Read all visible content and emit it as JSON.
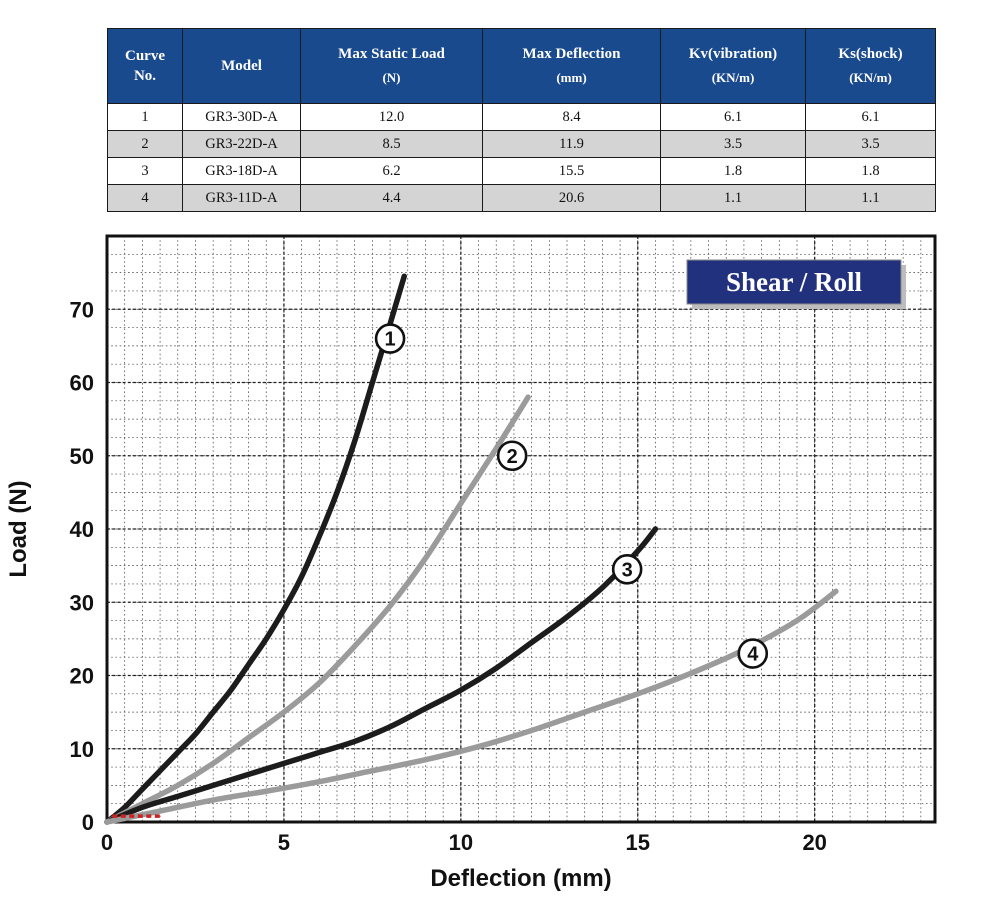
{
  "table": {
    "header_bg": "#1a4a8e",
    "row_alt_bg": "#d4d4d4",
    "columns": [
      {
        "title": "Curve",
        "unit": "No."
      },
      {
        "title": "Model",
        "unit": ""
      },
      {
        "title": "Max Static Load",
        "unit": "(N)"
      },
      {
        "title": "Max Deflection",
        "unit": "(mm)"
      },
      {
        "title": "Kv(vibration)",
        "unit": "(KN/m)"
      },
      {
        "title": "Ks(shock)",
        "unit": "(KN/m)"
      }
    ],
    "rows": [
      [
        "1",
        "GR3-30D-A",
        "12.0",
        "8.4",
        "6.1",
        "6.1"
      ],
      [
        "2",
        "GR3-22D-A",
        "8.5",
        "11.9",
        "3.5",
        "3.5"
      ],
      [
        "3",
        "GR3-18D-A",
        "6.2",
        "15.5",
        "1.8",
        "1.8"
      ],
      [
        "4",
        "GR3-11D-A",
        "4.4",
        "20.6",
        "1.1",
        "1.1"
      ]
    ]
  },
  "chart_data": {
    "type": "line",
    "badge_title": "Shear / Roll",
    "badge_bg": "#21317e",
    "xlabel": "Deflection (mm)",
    "ylabel": "Load (N)",
    "xlim": [
      0,
      23.4
    ],
    "ylim": [
      0,
      80
    ],
    "x_ticks": [
      0,
      5,
      10,
      15,
      20
    ],
    "y_ticks": [
      0,
      10,
      20,
      30,
      40,
      50,
      60,
      70
    ],
    "minor_grid": {
      "x_step": 0.5,
      "y_step": 2.5
    },
    "series": [
      {
        "name": "1",
        "color": "#1c1c1c",
        "label_at": [
          8.0,
          66
        ],
        "points": [
          [
            0,
            0
          ],
          [
            0.5,
            2
          ],
          [
            1,
            4.5
          ],
          [
            1.5,
            7
          ],
          [
            2,
            9.5
          ],
          [
            2.5,
            12
          ],
          [
            3,
            15
          ],
          [
            3.5,
            18
          ],
          [
            4,
            21.5
          ],
          [
            4.5,
            25
          ],
          [
            5,
            29
          ],
          [
            5.5,
            33.5
          ],
          [
            6,
            39
          ],
          [
            6.5,
            45
          ],
          [
            7,
            52
          ],
          [
            7.5,
            60
          ],
          [
            8,
            68
          ],
          [
            8.4,
            74.5
          ]
        ]
      },
      {
        "name": "2",
        "color": "#9b9b9b",
        "label_at": [
          11.45,
          50
        ],
        "points": [
          [
            0,
            0
          ],
          [
            1,
            2.5
          ],
          [
            2,
            5
          ],
          [
            3,
            8
          ],
          [
            4,
            11.5
          ],
          [
            5,
            15
          ],
          [
            6,
            19
          ],
          [
            7,
            24
          ],
          [
            8,
            29.5
          ],
          [
            9,
            36
          ],
          [
            10,
            43.5
          ],
          [
            11,
            51
          ],
          [
            11.9,
            58
          ]
        ]
      },
      {
        "name": "3",
        "color": "#1c1c1c",
        "label_at": [
          14.7,
          34.5
        ],
        "points": [
          [
            0,
            0
          ],
          [
            1,
            2
          ],
          [
            2,
            3.5
          ],
          [
            3,
            5
          ],
          [
            4,
            6.5
          ],
          [
            5,
            8
          ],
          [
            6,
            9.5
          ],
          [
            7,
            11
          ],
          [
            8,
            13
          ],
          [
            9,
            15.5
          ],
          [
            10,
            18
          ],
          [
            11,
            21
          ],
          [
            12,
            24.5
          ],
          [
            13,
            28
          ],
          [
            14,
            32
          ],
          [
            15,
            37
          ],
          [
            15.5,
            40
          ]
        ]
      },
      {
        "name": "4",
        "color": "#9b9b9b",
        "label_at": [
          18.25,
          23
        ],
        "points": [
          [
            0,
            0
          ],
          [
            1.5,
            1.5
          ],
          [
            3,
            3
          ],
          [
            4.5,
            4.2
          ],
          [
            6,
            5.5
          ],
          [
            7.5,
            7
          ],
          [
            9,
            8.5
          ],
          [
            10.5,
            10.3
          ],
          [
            12,
            12.5
          ],
          [
            13.5,
            15
          ],
          [
            15,
            17.5
          ],
          [
            16.5,
            20.3
          ],
          [
            18,
            23.5
          ],
          [
            19.5,
            27.5
          ],
          [
            20.6,
            31.5
          ]
        ]
      }
    ],
    "origin_marks": {
      "color": "#cc2222",
      "x1": 0.15,
      "y1": 0.8,
      "x2": 1.5,
      "y2": 0.8
    }
  }
}
